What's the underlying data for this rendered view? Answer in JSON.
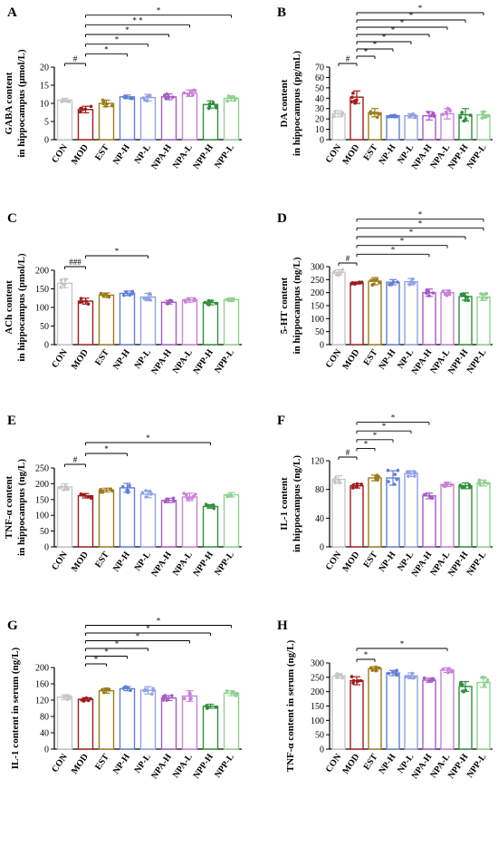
{
  "categories": [
    "CON",
    "MOD",
    "EST",
    "NP-H",
    "NP-L",
    "NPA-H",
    "NPA-L",
    "NPP-H",
    "NPP-L"
  ],
  "group_colors": [
    "#c7c7c7",
    "#a11a1a",
    "#9c7c19",
    "#5f7fd6",
    "#8fa2e6",
    "#a65bc4",
    "#c980d9",
    "#2f8f3b",
    "#8fd18f"
  ],
  "chart_data": [
    {
      "type": "bar",
      "panel_label": "A",
      "ylabel": [
        "GABA content",
        "in hippocampus (μmol/L)"
      ],
      "ylim": [
        0,
        20
      ],
      "yticks": [
        0,
        5,
        10,
        15,
        20
      ],
      "categories": [
        "CON",
        "MOD",
        "EST",
        "NP-H",
        "NP-L",
        "NPA-H",
        "NPA-L",
        "NPP-H",
        "NPP-L"
      ],
      "values": [
        10.9,
        8.3,
        10.0,
        11.8,
        11.6,
        11.8,
        12.8,
        9.7,
        11.4
      ],
      "errors": [
        0.5,
        0.9,
        0.9,
        0.5,
        0.9,
        0.8,
        0.9,
        1.0,
        0.7
      ],
      "significance": [
        {
          "from": "CON",
          "to": "MOD",
          "label": "#"
        },
        {
          "from": "MOD",
          "to": "NP-H",
          "label": "*"
        },
        {
          "from": "MOD",
          "to": "NP-L",
          "label": "*"
        },
        {
          "from": "MOD",
          "to": "NPA-H",
          "label": "*"
        },
        {
          "from": "MOD",
          "to": "NPA-L",
          "label": "* *"
        },
        {
          "from": "MOD",
          "to": "NPP-L",
          "label": "*"
        }
      ]
    },
    {
      "type": "bar",
      "panel_label": "B",
      "ylabel": [
        "DA content",
        "in hippocampus (pg/mL)"
      ],
      "ylim": [
        0,
        70
      ],
      "yticks": [
        0,
        10,
        20,
        30,
        40,
        50,
        60,
        70
      ],
      "categories": [
        "CON",
        "MOD",
        "EST",
        "NP-H",
        "NP-L",
        "NPA-H",
        "NPA-L",
        "NPP-H",
        "NPP-L"
      ],
      "values": [
        25,
        41,
        26,
        23,
        23,
        23,
        25,
        24,
        24
      ],
      "errors": [
        3,
        6,
        4,
        1,
        2,
        4,
        5,
        6,
        3
      ],
      "significance": [
        {
          "from": "CON",
          "to": "MOD",
          "label": "#"
        },
        {
          "from": "MOD",
          "to": "EST",
          "label": "*"
        },
        {
          "from": "MOD",
          "to": "NP-H",
          "label": "*"
        },
        {
          "from": "MOD",
          "to": "NP-L",
          "label": "*"
        },
        {
          "from": "MOD",
          "to": "NPA-H",
          "label": "*"
        },
        {
          "from": "MOD",
          "to": "NPA-L",
          "label": "*"
        },
        {
          "from": "MOD",
          "to": "NPP-H",
          "label": "*"
        },
        {
          "from": "MOD",
          "to": "NPP-L",
          "label": "*"
        }
      ]
    },
    {
      "type": "bar",
      "panel_label": "C",
      "ylabel": [
        "ACh content",
        "in hippocampus (pmol/L)"
      ],
      "ylim": [
        0,
        200
      ],
      "yticks": [
        0,
        50,
        100,
        150,
        200
      ],
      "categories": [
        "CON",
        "MOD",
        "EST",
        "NP-H",
        "NP-L",
        "NPA-H",
        "NPA-L",
        "NPP-H",
        "NPP-L"
      ],
      "values": [
        165,
        117,
        133,
        138,
        128,
        114,
        120,
        113,
        121
      ],
      "errors": [
        12,
        8,
        6,
        6,
        10,
        5,
        6,
        6,
        5
      ],
      "significance": [
        {
          "from": "CON",
          "to": "MOD",
          "label": "###"
        },
        {
          "from": "MOD",
          "to": "NP-L",
          "label": "*"
        }
      ]
    },
    {
      "type": "bar",
      "panel_label": "D",
      "ylabel": [
        "5-HT content",
        "in hippocampus (ng/L)"
      ],
      "ylim": [
        0,
        300
      ],
      "yticks": [
        0,
        50,
        100,
        150,
        200,
        250,
        300
      ],
      "categories": [
        "CON",
        "MOD",
        "EST",
        "NP-H",
        "NP-L",
        "NPA-H",
        "NPA-L",
        "NPP-H",
        "NPP-L"
      ],
      "values": [
        278,
        237,
        244,
        240,
        242,
        200,
        200,
        185,
        183
      ],
      "errors": [
        10,
        4,
        14,
        10,
        12,
        14,
        10,
        14,
        13
      ],
      "significance": [
        {
          "from": "CON",
          "to": "MOD",
          "label": "#"
        },
        {
          "from": "MOD",
          "to": "NPA-H",
          "label": "*"
        },
        {
          "from": "MOD",
          "to": "NPA-L",
          "label": "*"
        },
        {
          "from": "MOD",
          "to": "NPP-H",
          "label": "*"
        },
        {
          "from": "MOD",
          "to": "NPP-L",
          "label": "*"
        },
        {
          "from": "MOD",
          "to": "NPP-L",
          "label": "*"
        }
      ]
    },
    {
      "type": "bar",
      "panel_label": "E",
      "ylabel": [
        "TNF-α content",
        "in hippocampus (ng/L)"
      ],
      "ylim": [
        0,
        250
      ],
      "yticks": [
        0,
        50,
        100,
        150,
        200,
        250
      ],
      "categories": [
        "CON",
        "MOD",
        "EST",
        "NP-H",
        "NP-L",
        "NPA-H",
        "NPA-L",
        "NPP-H",
        "NPP-L"
      ],
      "values": [
        190,
        162,
        180,
        187,
        167,
        147,
        158,
        128,
        165
      ],
      "errors": [
        10,
        7,
        6,
        14,
        11,
        7,
        12,
        6,
        7
      ],
      "significance": [
        {
          "from": "CON",
          "to": "MOD",
          "label": "#"
        },
        {
          "from": "MOD",
          "to": "NP-H",
          "label": "*"
        },
        {
          "from": "MOD",
          "to": "NPP-H",
          "label": "*"
        }
      ]
    },
    {
      "type": "bar",
      "panel_label": "F",
      "ylabel": [
        "IL-1 content",
        "in hippocampus (ng/L)"
      ],
      "ylim": [
        0,
        120
      ],
      "yticks": [
        0,
        40,
        80,
        120
      ],
      "categories": [
        "CON",
        "MOD",
        "EST",
        "NP-H",
        "NP-L",
        "NPA-H",
        "NPA-L",
        "NPP-H",
        "NPP-L"
      ],
      "values": [
        94,
        85,
        96,
        96,
        102,
        71,
        87,
        85,
        89
      ],
      "errors": [
        5,
        3,
        4,
        10,
        4,
        4,
        3,
        4,
        4
      ],
      "significance": [
        {
          "from": "CON",
          "to": "MOD",
          "label": "#"
        },
        {
          "from": "MOD",
          "to": "EST",
          "label": "*"
        },
        {
          "from": "MOD",
          "to": "NP-H",
          "label": "*"
        },
        {
          "from": "MOD",
          "to": "NP-L",
          "label": "*"
        },
        {
          "from": "MOD",
          "to": "NPA-H",
          "label": "*"
        }
      ]
    },
    {
      "type": "bar",
      "panel_label": "G",
      "ylabel": [
        "IL-1 content in serum (ng/L)"
      ],
      "ylim": [
        0,
        200
      ],
      "yticks": [
        0,
        40,
        80,
        120,
        160,
        200
      ],
      "categories": [
        "CON",
        "MOD",
        "EST",
        "NP-H",
        "NP-L",
        "NPA-H",
        "NPA-L",
        "NPP-H",
        "NPP-L"
      ],
      "values": [
        127,
        122,
        143,
        148,
        144,
        125,
        130,
        105,
        137
      ],
      "errors": [
        6,
        4,
        6,
        5,
        9,
        6,
        13,
        5,
        6
      ],
      "significance": [
        {
          "from": "MOD",
          "to": "EST",
          "label": "*"
        },
        {
          "from": "MOD",
          "to": "NP-H",
          "label": "*"
        },
        {
          "from": "MOD",
          "to": "NP-L",
          "label": "*"
        },
        {
          "from": "MOD",
          "to": "NPA-L",
          "label": "*"
        },
        {
          "from": "MOD",
          "to": "NPP-H",
          "label": "*"
        },
        {
          "from": "MOD",
          "to": "NPP-L",
          "label": "*"
        }
      ]
    },
    {
      "type": "bar",
      "panel_label": "H",
      "ylabel": [
        "TNF-α content in serum (ng/L)"
      ],
      "ylim": [
        0,
        300
      ],
      "yticks": [
        0,
        50,
        100,
        150,
        200,
        250,
        300
      ],
      "categories": [
        "CON",
        "MOD",
        "EST",
        "NP-H",
        "NP-L",
        "NPA-H",
        "NPA-L",
        "NPP-H",
        "NPP-L"
      ],
      "values": [
        255,
        238,
        280,
        265,
        255,
        240,
        275,
        218,
        232
      ],
      "errors": [
        8,
        14,
        7,
        9,
        10,
        7,
        8,
        17,
        17
      ],
      "significance": [
        {
          "from": "MOD",
          "to": "EST",
          "label": "*"
        },
        {
          "from": "MOD",
          "to": "NPA-L",
          "label": "*"
        }
      ]
    }
  ]
}
